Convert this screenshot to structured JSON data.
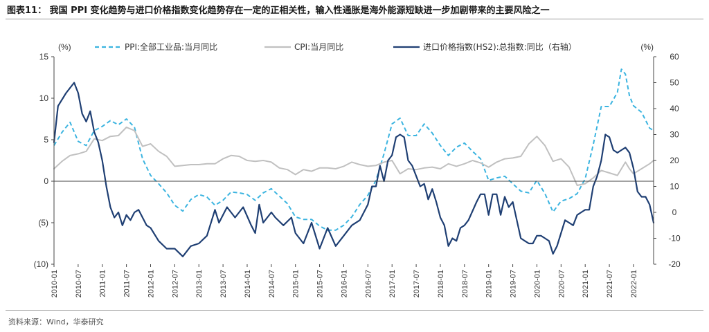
{
  "header": {
    "title": "图表11： 我国 PPI 变化趋势与进口价格指数变化趋势存在一定的正相关性，输入性通胀是海外能源短缺进一步加剧带来的主要风险之一"
  },
  "footer": {
    "source": "资料来源：Wind，华泰研究"
  },
  "chart_data": {
    "type": "line",
    "title": "",
    "ylabel_left_unit": "(%)",
    "ylabel_right_unit": "(%)",
    "ylim_left": [
      -10,
      15
    ],
    "ylim_right": [
      -20,
      60
    ],
    "yticks_left": [
      "15",
      "10",
      "5",
      "0",
      "(5)",
      "(10)"
    ],
    "yticks_right": [
      "60",
      "50",
      "40",
      "30",
      "20",
      "10",
      "0",
      "-10",
      "-20"
    ],
    "x_tick_labels": [
      "2010-01",
      "2010-07",
      "2011-01",
      "2011-07",
      "2012-01",
      "2012-07",
      "2013-01",
      "2013-07",
      "2014-01",
      "2014-07",
      "2015-01",
      "2015-07",
      "2016-01",
      "2016-07",
      "2017-01",
      "2017-07",
      "2018-01",
      "2018-07",
      "2019-01",
      "2019-07",
      "2020-01",
      "2020-07",
      "2021-01",
      "2021-07",
      "2022-01"
    ],
    "x_range": [
      "2010-01",
      "2022-06"
    ],
    "zero_line": true,
    "grid": false,
    "legend_position": "top",
    "series": [
      {
        "name": "PPI:全部工业品:当月同比",
        "axis": "left",
        "style": "dashed",
        "color": "#3bb4e0",
        "points": [
          [
            "2010-01",
            4.3
          ],
          [
            "2010-03",
            5.9
          ],
          [
            "2010-05",
            7.1
          ],
          [
            "2010-07",
            4.8
          ],
          [
            "2010-09",
            4.3
          ],
          [
            "2010-11",
            6.1
          ],
          [
            "2011-01",
            6.6
          ],
          [
            "2011-03",
            7.3
          ],
          [
            "2011-05",
            6.8
          ],
          [
            "2011-07",
            7.5
          ],
          [
            "2011-09",
            6.5
          ],
          [
            "2011-11",
            2.7
          ],
          [
            "2012-01",
            0.7
          ],
          [
            "2012-03",
            -0.3
          ],
          [
            "2012-05",
            -1.4
          ],
          [
            "2012-07",
            -2.9
          ],
          [
            "2012-09",
            -3.6
          ],
          [
            "2012-11",
            -2.2
          ],
          [
            "2013-01",
            -1.6
          ],
          [
            "2013-03",
            -1.9
          ],
          [
            "2013-05",
            -2.9
          ],
          [
            "2013-07",
            -2.3
          ],
          [
            "2013-09",
            -1.3
          ],
          [
            "2013-11",
            -1.4
          ],
          [
            "2014-01",
            -1.6
          ],
          [
            "2014-03",
            -2.3
          ],
          [
            "2014-05",
            -1.4
          ],
          [
            "2014-07",
            -0.9
          ],
          [
            "2014-09",
            -1.8
          ],
          [
            "2014-11",
            -2.7
          ],
          [
            "2015-01",
            -4.3
          ],
          [
            "2015-03",
            -4.6
          ],
          [
            "2015-05",
            -4.6
          ],
          [
            "2015-07",
            -5.4
          ],
          [
            "2015-09",
            -5.9
          ],
          [
            "2015-11",
            -5.9
          ],
          [
            "2016-01",
            -5.3
          ],
          [
            "2016-03",
            -4.3
          ],
          [
            "2016-05",
            -2.8
          ],
          [
            "2016-07",
            -1.7
          ],
          [
            "2016-09",
            0.1
          ],
          [
            "2016-11",
            3.3
          ],
          [
            "2017-01",
            6.9
          ],
          [
            "2017-03",
            7.6
          ],
          [
            "2017-05",
            5.5
          ],
          [
            "2017-07",
            5.5
          ],
          [
            "2017-09",
            6.9
          ],
          [
            "2017-11",
            5.8
          ],
          [
            "2018-01",
            4.3
          ],
          [
            "2018-03",
            3.1
          ],
          [
            "2018-05",
            4.1
          ],
          [
            "2018-07",
            4.6
          ],
          [
            "2018-09",
            3.6
          ],
          [
            "2018-11",
            2.7
          ],
          [
            "2019-01",
            0.1
          ],
          [
            "2019-03",
            0.4
          ],
          [
            "2019-05",
            0.6
          ],
          [
            "2019-07",
            -0.3
          ],
          [
            "2019-09",
            -1.2
          ],
          [
            "2019-11",
            -1.4
          ],
          [
            "2020-01",
            0.1
          ],
          [
            "2020-03",
            -1.5
          ],
          [
            "2020-05",
            -3.7
          ],
          [
            "2020-07",
            -2.4
          ],
          [
            "2020-09",
            -2.1
          ],
          [
            "2020-11",
            -1.5
          ],
          [
            "2021-01",
            0.3
          ],
          [
            "2021-03",
            4.4
          ],
          [
            "2021-05",
            9.0
          ],
          [
            "2021-07",
            9.0
          ],
          [
            "2021-09",
            10.7
          ],
          [
            "2021-10",
            13.5
          ],
          [
            "2021-11",
            12.9
          ],
          [
            "2021-12",
            10.3
          ],
          [
            "2022-01",
            9.1
          ],
          [
            "2022-03",
            8.3
          ],
          [
            "2022-05",
            6.4
          ],
          [
            "2022-06",
            6.1
          ]
        ]
      },
      {
        "name": "CPI:当月同比",
        "axis": "left",
        "style": "solid",
        "color": "#c0c0c0",
        "points": [
          [
            "2010-01",
            1.5
          ],
          [
            "2010-03",
            2.4
          ],
          [
            "2010-05",
            3.1
          ],
          [
            "2010-07",
            3.3
          ],
          [
            "2010-09",
            3.6
          ],
          [
            "2010-11",
            5.1
          ],
          [
            "2011-01",
            4.9
          ],
          [
            "2011-03",
            5.4
          ],
          [
            "2011-05",
            5.5
          ],
          [
            "2011-07",
            6.5
          ],
          [
            "2011-09",
            6.1
          ],
          [
            "2011-11",
            4.2
          ],
          [
            "2012-01",
            4.5
          ],
          [
            "2012-03",
            3.6
          ],
          [
            "2012-05",
            3.0
          ],
          [
            "2012-07",
            1.8
          ],
          [
            "2012-09",
            1.9
          ],
          [
            "2012-11",
            2.0
          ],
          [
            "2013-01",
            2.0
          ],
          [
            "2013-03",
            2.1
          ],
          [
            "2013-05",
            2.1
          ],
          [
            "2013-07",
            2.7
          ],
          [
            "2013-09",
            3.1
          ],
          [
            "2013-11",
            3.0
          ],
          [
            "2014-01",
            2.5
          ],
          [
            "2014-03",
            2.4
          ],
          [
            "2014-05",
            2.5
          ],
          [
            "2014-07",
            2.3
          ],
          [
            "2014-09",
            1.6
          ],
          [
            "2014-11",
            1.4
          ],
          [
            "2015-01",
            0.8
          ],
          [
            "2015-03",
            1.4
          ],
          [
            "2015-05",
            1.2
          ],
          [
            "2015-07",
            1.6
          ],
          [
            "2015-09",
            1.6
          ],
          [
            "2015-11",
            1.5
          ],
          [
            "2016-01",
            1.8
          ],
          [
            "2016-03",
            2.3
          ],
          [
            "2016-05",
            2.0
          ],
          [
            "2016-07",
            1.8
          ],
          [
            "2016-09",
            1.9
          ],
          [
            "2016-11",
            2.3
          ],
          [
            "2017-01",
            2.5
          ],
          [
            "2017-03",
            0.9
          ],
          [
            "2017-05",
            1.5
          ],
          [
            "2017-07",
            1.4
          ],
          [
            "2017-09",
            1.6
          ],
          [
            "2017-11",
            1.7
          ],
          [
            "2018-01",
            1.5
          ],
          [
            "2018-03",
            2.1
          ],
          [
            "2018-05",
            1.8
          ],
          [
            "2018-07",
            2.1
          ],
          [
            "2018-09",
            2.5
          ],
          [
            "2018-11",
            2.2
          ],
          [
            "2019-01",
            1.7
          ],
          [
            "2019-03",
            2.3
          ],
          [
            "2019-05",
            2.7
          ],
          [
            "2019-07",
            2.8
          ],
          [
            "2019-09",
            3.0
          ],
          [
            "2019-11",
            4.5
          ],
          [
            "2020-01",
            5.4
          ],
          [
            "2020-03",
            4.3
          ],
          [
            "2020-05",
            2.4
          ],
          [
            "2020-07",
            2.7
          ],
          [
            "2020-09",
            1.7
          ],
          [
            "2020-11",
            -0.5
          ],
          [
            "2021-01",
            -0.3
          ],
          [
            "2021-03",
            0.4
          ],
          [
            "2021-05",
            1.3
          ],
          [
            "2021-07",
            1.0
          ],
          [
            "2021-09",
            0.7
          ],
          [
            "2021-11",
            2.3
          ],
          [
            "2021-12",
            1.5
          ],
          [
            "2022-01",
            0.9
          ],
          [
            "2022-03",
            1.5
          ],
          [
            "2022-05",
            2.1
          ],
          [
            "2022-06",
            2.5
          ]
        ]
      },
      {
        "name": "进口价格指数(HS2):总指数:同比（右轴）",
        "axis": "right",
        "style": "solid",
        "color": "#1f3f73",
        "points": [
          [
            "2010-01",
            27
          ],
          [
            "2010-02",
            41
          ],
          [
            "2010-04",
            46
          ],
          [
            "2010-06",
            50
          ],
          [
            "2010-07",
            46
          ],
          [
            "2010-08",
            38
          ],
          [
            "2010-09",
            35
          ],
          [
            "2010-10",
            39
          ],
          [
            "2010-11",
            31
          ],
          [
            "2010-12",
            27
          ],
          [
            "2011-01",
            20
          ],
          [
            "2011-02",
            10
          ],
          [
            "2011-03",
            2
          ],
          [
            "2011-04",
            -2
          ],
          [
            "2011-05",
            0
          ],
          [
            "2011-06",
            -5
          ],
          [
            "2011-07",
            -1
          ],
          [
            "2011-08",
            -3
          ],
          [
            "2011-09",
            0
          ],
          [
            "2011-10",
            1
          ],
          [
            "2011-11",
            -2
          ],
          [
            "2011-12",
            -5
          ],
          [
            "2012-01",
            -6
          ],
          [
            "2012-03",
            -11
          ],
          [
            "2012-05",
            -14
          ],
          [
            "2012-07",
            -14
          ],
          [
            "2012-09",
            -17
          ],
          [
            "2012-11",
            -13
          ],
          [
            "2013-01",
            -12
          ],
          [
            "2013-03",
            -9
          ],
          [
            "2013-05",
            1
          ],
          [
            "2013-06",
            -4
          ],
          [
            "2013-08",
            2
          ],
          [
            "2013-10",
            -2
          ],
          [
            "2013-12",
            2
          ],
          [
            "2014-02",
            -5
          ],
          [
            "2014-03",
            -8
          ],
          [
            "2014-04",
            3
          ],
          [
            "2014-05",
            -4
          ],
          [
            "2014-07",
            0
          ],
          [
            "2014-08",
            -2
          ],
          [
            "2014-10",
            -5
          ],
          [
            "2014-12",
            -2
          ],
          [
            "2015-01",
            -8
          ],
          [
            "2015-03",
            -12
          ],
          [
            "2015-05",
            -4
          ],
          [
            "2015-07",
            -14
          ],
          [
            "2015-09",
            -6
          ],
          [
            "2015-11",
            -13
          ],
          [
            "2016-01",
            -9
          ],
          [
            "2016-03",
            -5
          ],
          [
            "2016-05",
            -3
          ],
          [
            "2016-07",
            3
          ],
          [
            "2016-08",
            10
          ],
          [
            "2016-09",
            10
          ],
          [
            "2016-10",
            18
          ],
          [
            "2016-11",
            12
          ],
          [
            "2016-12",
            20
          ],
          [
            "2017-01",
            22
          ],
          [
            "2017-02",
            29
          ],
          [
            "2017-03",
            30
          ],
          [
            "2017-04",
            29
          ],
          [
            "2017-05",
            20
          ],
          [
            "2017-06",
            18
          ],
          [
            "2017-08",
            10
          ],
          [
            "2017-09",
            11
          ],
          [
            "2017-10",
            5
          ],
          [
            "2017-11",
            9
          ],
          [
            "2017-12",
            4
          ],
          [
            "2018-01",
            -2
          ],
          [
            "2018-02",
            -5
          ],
          [
            "2018-03",
            -13
          ],
          [
            "2018-04",
            -10
          ],
          [
            "2018-05",
            -11
          ],
          [
            "2018-06",
            -6
          ],
          [
            "2018-07",
            -5
          ],
          [
            "2018-08",
            -3
          ],
          [
            "2018-10",
            4
          ],
          [
            "2018-11",
            7
          ],
          [
            "2018-12",
            7
          ],
          [
            "2019-01",
            -1
          ],
          [
            "2019-02",
            7
          ],
          [
            "2019-03",
            7
          ],
          [
            "2019-04",
            -1
          ],
          [
            "2019-05",
            6
          ],
          [
            "2019-06",
            2
          ],
          [
            "2019-07",
            4
          ],
          [
            "2019-08",
            -3
          ],
          [
            "2019-09",
            -10
          ],
          [
            "2019-10",
            -11
          ],
          [
            "2019-11",
            -12
          ],
          [
            "2019-12",
            -12
          ],
          [
            "2020-01",
            -9
          ],
          [
            "2020-02",
            -9
          ],
          [
            "2020-03",
            -10
          ],
          [
            "2020-04",
            -11
          ],
          [
            "2020-05",
            -16
          ],
          [
            "2020-06",
            -13
          ],
          [
            "2020-07",
            -8
          ],
          [
            "2020-08",
            -3
          ],
          [
            "2020-09",
            -4
          ],
          [
            "2020-10",
            -5
          ],
          [
            "2020-11",
            -1
          ],
          [
            "2020-12",
            0
          ],
          [
            "2021-01",
            1
          ],
          [
            "2021-02",
            1
          ],
          [
            "2021-03",
            10
          ],
          [
            "2021-04",
            14
          ],
          [
            "2021-05",
            20
          ],
          [
            "2021-06",
            30
          ],
          [
            "2021-07",
            29
          ],
          [
            "2021-08",
            24
          ],
          [
            "2021-09",
            23
          ],
          [
            "2021-10",
            24
          ],
          [
            "2021-11",
            25
          ],
          [
            "2021-12",
            23
          ],
          [
            "2022-01",
            17
          ],
          [
            "2022-02",
            8
          ],
          [
            "2022-03",
            6
          ],
          [
            "2022-04",
            6
          ],
          [
            "2022-05",
            3
          ],
          [
            "2022-06",
            -4
          ]
        ]
      }
    ]
  }
}
